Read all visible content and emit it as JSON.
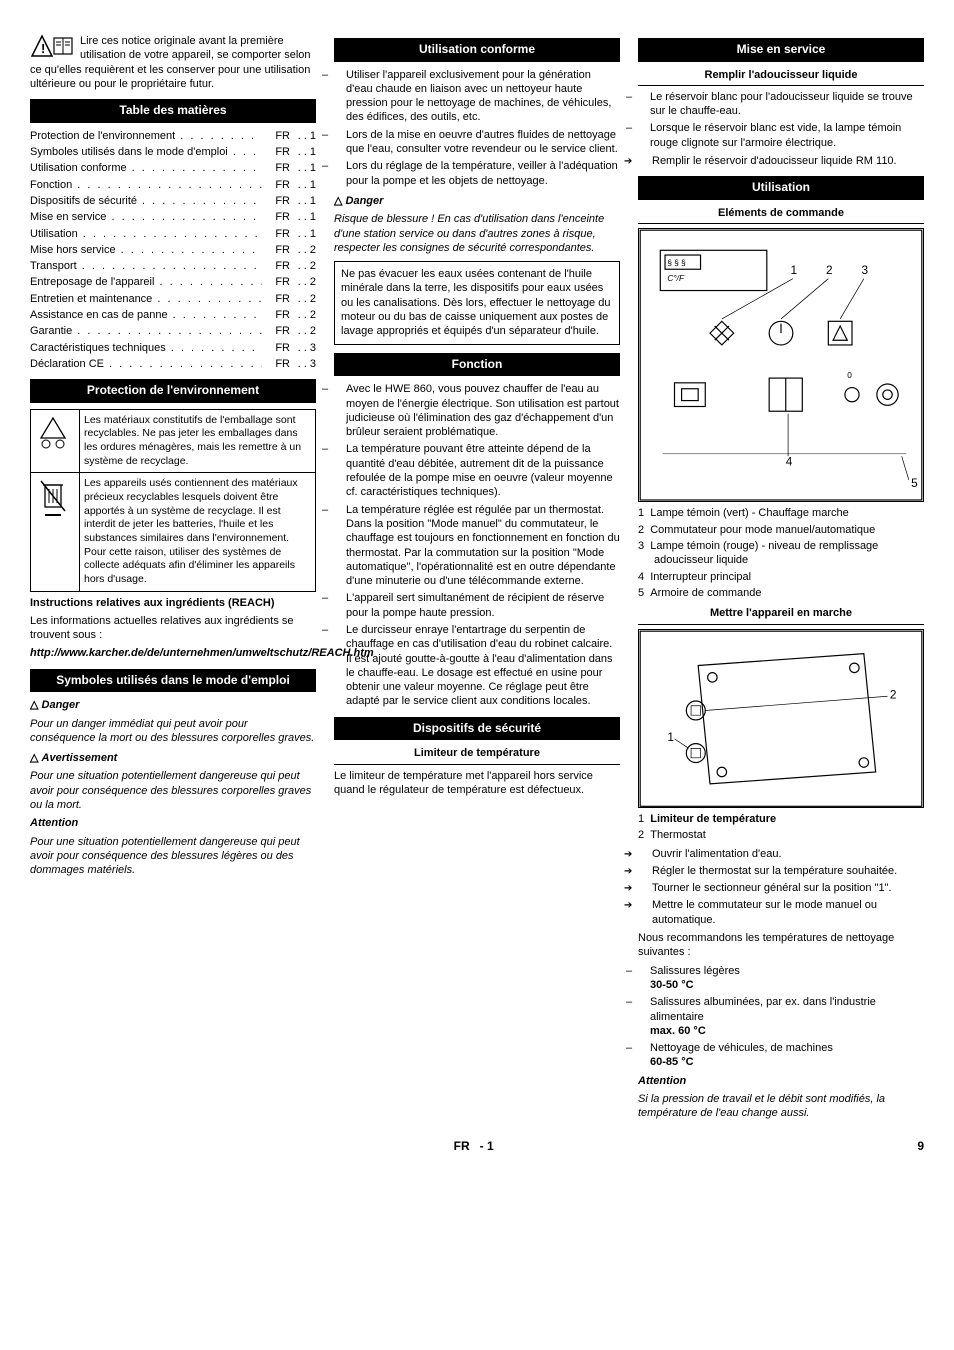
{
  "intro": "Lire ces notice originale avant la première utilisation de votre appareil, se comporter selon ce qu'elles requièrent et les conserver pour une utilisation ultérieure ou pour le propriétaire futur.",
  "toc": {
    "title": "Table des matières",
    "items": [
      {
        "label": "Protection de l'environnement",
        "lang": "FR",
        "page": ". . 1"
      },
      {
        "label": "Symboles utilisés dans le mode d'emploi",
        "lang": "FR",
        "page": ". . 1"
      },
      {
        "label": "Utilisation conforme",
        "lang": "FR",
        "page": ". . 1"
      },
      {
        "label": "Fonction",
        "lang": "FR",
        "page": ". . 1"
      },
      {
        "label": "Dispositifs de sécurité",
        "lang": "FR",
        "page": ". . 1"
      },
      {
        "label": "Mise en service",
        "lang": "FR",
        "page": ". . 1"
      },
      {
        "label": "Utilisation",
        "lang": "FR",
        "page": ". . 1"
      },
      {
        "label": "Mise hors service",
        "lang": "FR",
        "page": ". . 2"
      },
      {
        "label": "Transport",
        "lang": "FR",
        "page": ". . 2"
      },
      {
        "label": "Entreposage de l'appareil",
        "lang": "FR",
        "page": ". . 2"
      },
      {
        "label": "Entretien et maintenance",
        "lang": "FR",
        "page": ". . 2"
      },
      {
        "label": "Assistance en cas de panne",
        "lang": "FR",
        "page": ". . 2"
      },
      {
        "label": "Garantie",
        "lang": "FR",
        "page": ". . 2"
      },
      {
        "label": "Caractéristiques techniques",
        "lang": "FR",
        "page": ". . 3"
      },
      {
        "label": "Déclaration CE",
        "lang": "FR",
        "page": ". . 3"
      }
    ]
  },
  "env": {
    "title": "Protection de l'environnement",
    "rows": [
      "Les matériaux constitutifs de l'emballage sont recyclables. Ne pas jeter les emballages dans les ordures ménagères, mais les remettre à un système de recyclage.",
      "Les appareils usés contiennent des matériaux précieux recyclables lesquels doivent être apportés à un système de recyclage. Il est interdit de jeter les batteries, l'huile et les substances similaires dans l'environnement. Pour cette raison, utiliser des systèmes de collecte adéquats afin d'éliminer les appareils hors d'usage."
    ],
    "reach_title": "Instructions relatives aux ingrédients (REACH)",
    "reach_text": "Les informations actuelles relatives aux ingrédients se trouvent sous :",
    "reach_url": "http://www.karcher.de/de/unternehmen/umweltschutz/REACH.htm"
  },
  "symbols": {
    "title": "Symboles utilisés dans le mode d'emploi",
    "danger": "Danger",
    "danger_text": "Pour un danger immédiat qui peut avoir pour conséquence la mort ou des blessures corporelles graves.",
    "warn": "Avertissement",
    "warn_text": "Pour une situation potentiellement dangereuse qui peut avoir pour conséquence des blessures corporelles graves ou la mort.",
    "attn": "Attention",
    "attn_text": "Pour une situation potentiellement dangereuse qui peut avoir pour conséquence des blessures légères ou des dommages matériels."
  },
  "use": {
    "title": "Utilisation conforme",
    "items": [
      "Utiliser l'appareil exclusivement pour la génération d'eau chaude en liaison avec un nettoyeur haute pression pour le nettoyage de machines, de véhicules, des édifices, des outils, etc.",
      "Lors de la mise en oeuvre d'autres fluides de nettoyage que l'eau, consulter votre revendeur ou le service client.",
      "Lors du réglage de la température, veiller à l'adéquation pour la pompe et les objets de nettoyage."
    ],
    "danger_label": "Danger",
    "danger_text": "Risque de blessure ! En cas d'utilisation dans l'enceinte d'une station service ou dans d'autres zones à risque, respecter les consignes de sécurité correspondantes.",
    "box": "Ne pas évacuer les eaux usées contenant de l'huile minérale dans la terre, les dispositifs pour eaux usées ou les canalisations. Dès lors, effectuer le nettoyage du moteur ou du bas de caisse uniquement aux postes de lavage appropriés et équipés d'un séparateur d'huile."
  },
  "function": {
    "title": "Fonction",
    "items": [
      "Avec le HWE 860, vous pouvez chauffer de l'eau au moyen de l'énergie électrique. Son utilisation est partout judicieuse où l'élimination des gaz d'échappement d'un brûleur seraient problématique.",
      "La température pouvant être atteinte dépend de la quantité d'eau débitée, autrement dit de la puissance refoulée de la pompe mise en oeuvre (valeur moyenne cf. caractéristiques techniques).",
      "La température réglée est régulée par un thermostat. Dans la position \"Mode manuel\" du commutateur, le chauffage est toujours en fonctionnement en fonction du thermostat. Par la commutation sur la position \"Mode automatique\", l'opérationnalité est en outre dépendante d'une minuterie ou d'une télécommande externe.",
      "L'appareil sert simultanément de récipient de réserve pour la pompe haute pression.",
      "Le durcisseur enraye l'entartrage du serpentin de chauffage en cas d'utilisation d'eau du robinet calcaire. Il est ajouté goutte-à-goutte à l'eau d'alimentation dans le chauffe-eau. Le dosage est effectué en usine pour obtenir une valeur moyenne. Ce réglage peut être adapté par le service client aux conditions locales."
    ]
  },
  "safety": {
    "title": "Dispositifs de sécurité",
    "sub": "Limiteur de température",
    "text": "Le limiteur de température met l'appareil hors service quand le régulateur de température est défectueux."
  },
  "startup": {
    "title": "Mise en service",
    "sub": "Remplir l'adoucisseur liquide",
    "items": [
      "Le réservoir blanc pour l'adoucisseur liquide se trouve sur le chauffe-eau.",
      "Lorsque le réservoir blanc est vide, la lampe témoin rouge clignote sur l'armoire électrique."
    ],
    "arrow": "Remplir le réservoir d'adoucisseur liquide RM 110."
  },
  "usage": {
    "title": "Utilisation",
    "sub1": "Eléments de commande",
    "legend": [
      "Lampe témoin (vert) - Chauffage marche",
      "Commutateur pour mode manuel/automatique",
      "Lampe témoin (rouge) - niveau de remplissage adoucisseur liquide",
      "Interrupteur principal",
      "Armoire de commande"
    ],
    "sub2": "Mettre l'appareil en marche",
    "legend2": [
      {
        "n": "1",
        "t": "Limiteur de température",
        "bold": true
      },
      {
        "n": "2",
        "t": "Thermostat",
        "bold": false
      }
    ],
    "arrows": [
      "Ouvrir l'alimentation d'eau.",
      "Régler le thermostat sur la température souhaitée.",
      "Tourner le sectionneur général sur la position \"1\".",
      "Mettre le commutateur sur le mode manuel ou automatique."
    ],
    "rec_intro": "Nous recommandons les températures de nettoyage suivantes :",
    "rec": [
      {
        "label": "Salissures légères",
        "temp": "30-50 °C"
      },
      {
        "label": "Salissures albuminées, par ex. dans l'industrie alimentaire",
        "temp": "max. 60 °C"
      },
      {
        "label": "Nettoyage de véhicules, de machines",
        "temp": "60-85 °C"
      }
    ],
    "attn": "Attention",
    "attn_text": "Si la pression de travail et le débit sont modifiés, la température de l'eau change aussi."
  },
  "footer": {
    "lang": "FR",
    "sep": "-",
    "page_local": "1",
    "page_global": "9"
  }
}
